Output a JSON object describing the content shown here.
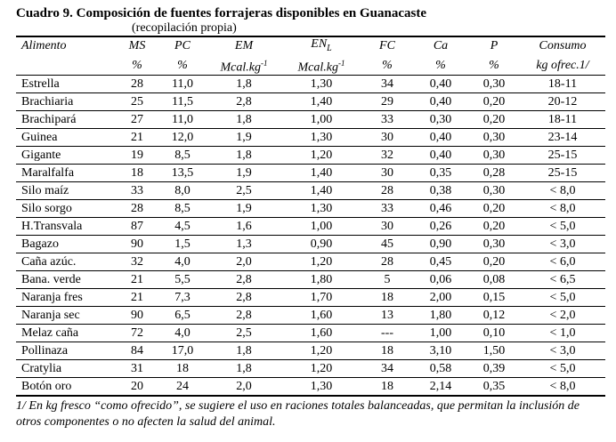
{
  "title": "Cuadro 9. Composición de fuentes forrajeras disponibles en Guanacaste",
  "subtitle": "(recopilación propia)",
  "headers": [
    {
      "key": "alimento",
      "top": "Alimento",
      "bottom": ""
    },
    {
      "key": "ms",
      "top": "MS",
      "bottom": "%"
    },
    {
      "key": "pc",
      "top": "PC",
      "bottom": "%"
    },
    {
      "key": "em",
      "top": "EM",
      "bottom": "Mcal.kg"
    },
    {
      "key": "enl",
      "top": "EN",
      "bottom": "Mcal.kg"
    },
    {
      "key": "fc",
      "top": "FC",
      "bottom": "%"
    },
    {
      "key": "ca",
      "top": "Ca",
      "bottom": "%"
    },
    {
      "key": "p",
      "top": "P",
      "bottom": "%"
    },
    {
      "key": "consumo",
      "top": "Consumo",
      "bottom": "kg ofrec.1/"
    }
  ],
  "header_sub": "L",
  "header_sup": "-1",
  "rows": [
    [
      "Estrella",
      "28",
      "11,0",
      "1,8",
      "1,30",
      "34",
      "0,40",
      "0,30",
      "18-11"
    ],
    [
      "Brachiaria",
      "25",
      "11,5",
      "2,8",
      "1,40",
      "29",
      "0,40",
      "0,20",
      "20-12"
    ],
    [
      "Brachipará",
      "27",
      "11,0",
      "1,8",
      "1,00",
      "33",
      "0,30",
      "0,20",
      "18-11"
    ],
    [
      "Guinea",
      "21",
      "12,0",
      "1,9",
      "1,30",
      "30",
      "0,40",
      "0,30",
      "23-14"
    ],
    [
      "Gigante",
      "19",
      "8,5",
      "1,8",
      "1,20",
      "32",
      "0,40",
      "0,30",
      "25-15"
    ],
    [
      "Maralfalfa",
      "18",
      "13,5",
      "1,9",
      "1,40",
      "30",
      "0,35",
      "0,28",
      "25-15"
    ],
    [
      "Silo maíz",
      "33",
      "8,0",
      "2,5",
      "1,40",
      "28",
      "0,38",
      "0,30",
      "< 8,0"
    ],
    [
      "Silo sorgo",
      "28",
      "8,5",
      "1,9",
      "1,30",
      "33",
      "0,46",
      "0,20",
      "< 8,0"
    ],
    [
      "H.Transvala",
      "87",
      "4,5",
      "1,6",
      "1,00",
      "30",
      "0,26",
      "0,20",
      "< 5,0"
    ],
    [
      "Bagazo",
      "90",
      "1,5",
      "1,3",
      "0,90",
      "45",
      "0,90",
      "0,30",
      "< 3,0"
    ],
    [
      "Caña  azúc.",
      "32",
      "4,0",
      "2,0",
      "1,20",
      "28",
      "0,45",
      "0,20",
      "< 6,0"
    ],
    [
      "Bana. verde",
      "21",
      "5,5",
      "2,8",
      "1,80",
      "5",
      "0,06",
      "0,08",
      "< 6,5"
    ],
    [
      "Naranja fres",
      "21",
      "7,3",
      "2,8",
      "1,70",
      "18",
      "2,00",
      "0,15",
      "< 5,0"
    ],
    [
      "Naranja sec",
      "90",
      "6,5",
      "2,8",
      "1,60",
      "13",
      "1,80",
      "0,12",
      "< 2,0"
    ],
    [
      "Melaz  caña",
      "72",
      "4,0",
      "2,5",
      "1,60",
      "---",
      "1,00",
      "0,10",
      "< 1,0"
    ],
    [
      "Pollinaza",
      "84",
      "17,0",
      "1,8",
      "1,20",
      "18",
      "3,10",
      "1,50",
      "< 3,0"
    ],
    [
      "Cratylia",
      "31",
      "18",
      "1,8",
      "1,20",
      "34",
      "0,58",
      "0,39",
      "< 5,0"
    ],
    [
      "Botón  oro",
      "20",
      "24",
      "2,0",
      "1,30",
      "18",
      "2,14",
      "0,35",
      "< 8,0"
    ]
  ],
  "footnote": "1/  En kg fresco  “como ofrecido”,  se sugiere el uso  en  raciones  totales balanceadas,  que permitan la inclusión de otros componentes  o no afecten la salud  del animal."
}
